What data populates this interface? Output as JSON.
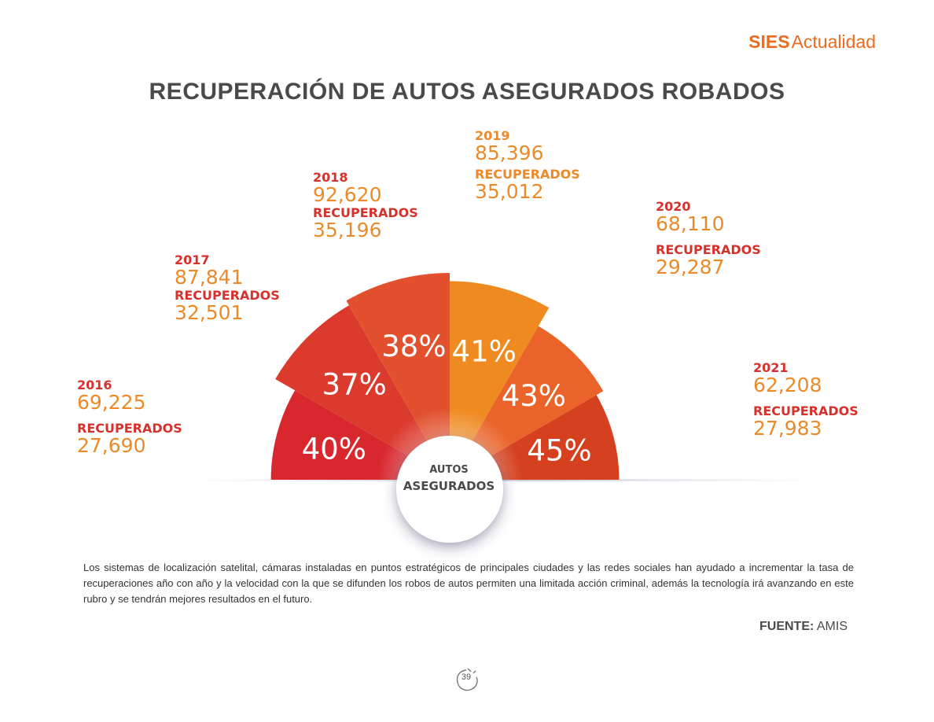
{
  "brand": {
    "part1": "SIES",
    "part2": "Actualidad"
  },
  "title": "RECUPERACIÓN DE AUTOS ASEGURADOS ROBADOS",
  "center": {
    "line1": "AUTOS",
    "line2": "ASEGURADOS"
  },
  "description": "Los sistemas de localización satelital, cámaras instaladas en puntos estratégicos de principales ciudades y las redes sociales han ayudado a incrementar la tasa de recuperaciones año con año y la velocidad con la que se difunden los robos de autos permiten una limitada acción criminal, además la tecnología irá avanzando en este rubro y se tendrán mejores resultados en el futuro.",
  "source": {
    "label": "FUENTE:",
    "value": "AMIS"
  },
  "page_number": "39",
  "colors": {
    "brand": "#ec6b1f",
    "title": "#4a4a4a",
    "label_key": "#d6312b",
    "label_value": "#ec8a2a",
    "sectors": [
      "#d9272e",
      "#dd3a2e",
      "#e2502e",
      "#ef8a21",
      "#ea6429",
      "#d5411f"
    ]
  },
  "chart_data": {
    "type": "polar-area",
    "title": "RECUPERACIÓN DE AUTOS ASEGURADOS ROBADOS",
    "recovered_label": "RECUPERADOS",
    "categories": [
      "2016",
      "2017",
      "2018",
      "2019",
      "2020",
      "2021"
    ],
    "series": [
      {
        "name": "Autos asegurados robados",
        "values": [
          "69,225",
          "87,841",
          "92,620",
          "85,396",
          "68,110",
          "62,208"
        ]
      },
      {
        "name": "Recuperados",
        "values": [
          "27,690",
          "32,501",
          "35,196",
          "35,012",
          "29,287",
          "27,983"
        ]
      },
      {
        "name": "Porcentaje de recuperación",
        "values": [
          "40%",
          "37%",
          "38%",
          "41%",
          "43%",
          "45%"
        ]
      }
    ]
  }
}
